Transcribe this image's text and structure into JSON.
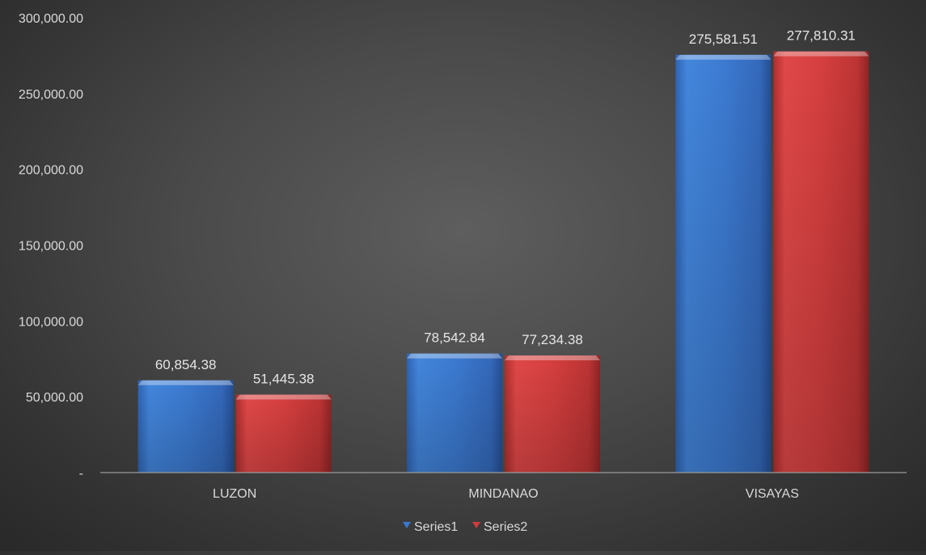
{
  "chart_data": {
    "type": "bar",
    "title": "",
    "xlabel": "",
    "ylabel": "",
    "categories": [
      "LUZON",
      "MINDANAO",
      "VISAYAS"
    ],
    "series": [
      {
        "name": "Series1",
        "color": "#3a78d0",
        "values": [
          60854.38,
          78542.84,
          275581.51
        ],
        "labels": [
          "60,854.38",
          "78,542.84",
          "275,581.51"
        ]
      },
      {
        "name": "Series2",
        "color": "#d03c3c",
        "values": [
          51445.38,
          77234.38,
          277810.31
        ],
        "labels": [
          "51,445.38",
          "77,234.38",
          "277,810.31"
        ]
      }
    ],
    "ylim": [
      0,
      300000
    ],
    "y_ticks": [
      0,
      50000,
      100000,
      150000,
      200000,
      250000,
      300000
    ],
    "y_tick_labels": [
      "-",
      "50,000.00",
      "100,000.00",
      "150,000.00",
      "200,000.00",
      "250,000.00",
      "300,000.00"
    ],
    "grid": false,
    "legend_position": "bottom"
  }
}
